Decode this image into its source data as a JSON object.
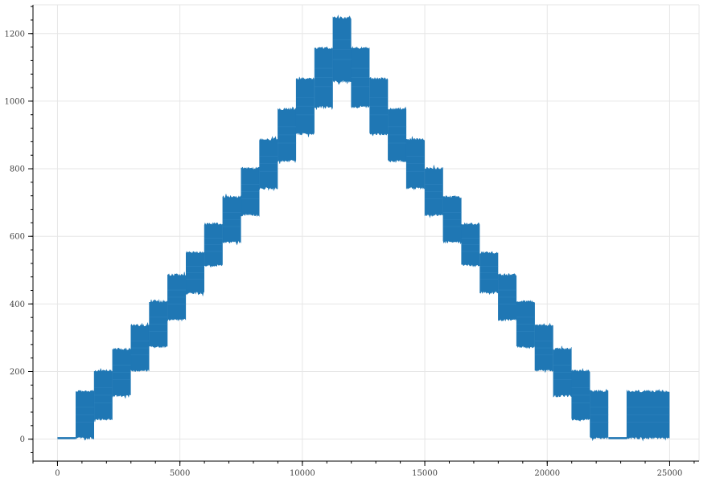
{
  "chart_data": {
    "type": "line",
    "title": "",
    "xlabel": "",
    "ylabel": "",
    "xlim": [
      -1000,
      26200
    ],
    "ylim": [
      -65,
      1285
    ],
    "grid": true,
    "legend": "none",
    "x_ticks": [
      0,
      5000,
      10000,
      15000,
      20000,
      25000
    ],
    "y_ticks": [
      0,
      200,
      400,
      600,
      800,
      1000,
      1200
    ],
    "x_tick_labels": [
      "0",
      "5000",
      "10000",
      "15000",
      "20000",
      "25000"
    ],
    "y_tick_labels": [
      "0",
      "200",
      "400",
      "600",
      "800",
      "1000",
      "1200"
    ],
    "series": [
      {
        "color": "#1f77b4",
        "noise_amplitude": 6,
        "blocks": [
          {
            "x": [
              0,
              750
            ],
            "y": [
              0,
              6
            ]
          },
          {
            "x": [
              750,
              1500
            ],
            "y": [
              0,
              145
            ]
          },
          {
            "x": [
              1500,
              2250
            ],
            "y": [
              55,
              205
            ]
          },
          {
            "x": [
              2250,
              3000
            ],
            "y": [
              125,
              270
            ]
          },
          {
            "x": [
              3000,
              3750
            ],
            "y": [
              200,
              340
            ]
          },
          {
            "x": [
              3750,
              4500
            ],
            "y": [
              270,
              410
            ]
          },
          {
            "x": [
              4500,
              5250
            ],
            "y": [
              350,
              490
            ]
          },
          {
            "x": [
              5250,
              6000
            ],
            "y": [
              430,
              555
            ]
          },
          {
            "x": [
              6000,
              6750
            ],
            "y": [
              510,
              640
            ]
          },
          {
            "x": [
              6750,
              7500
            ],
            "y": [
              580,
              720
            ]
          },
          {
            "x": [
              7500,
              8250
            ],
            "y": [
              660,
              805
            ]
          },
          {
            "x": [
              8250,
              9000
            ],
            "y": [
              740,
              890
            ]
          },
          {
            "x": [
              9000,
              9750
            ],
            "y": [
              820,
              980
            ]
          },
          {
            "x": [
              9750,
              10500
            ],
            "y": [
              900,
              1070
            ]
          },
          {
            "x": [
              10500,
              11250
            ],
            "y": [
              980,
              1160
            ]
          },
          {
            "x": [
              11250,
              12000
            ],
            "y": [
              1055,
              1250
            ]
          },
          {
            "x": [
              12000,
              12750
            ],
            "y": [
              980,
              1160
            ]
          },
          {
            "x": [
              12750,
              13500
            ],
            "y": [
              900,
              1070
            ]
          },
          {
            "x": [
              13500,
              14250
            ],
            "y": [
              820,
              980
            ]
          },
          {
            "x": [
              14250,
              15000
            ],
            "y": [
              740,
              890
            ]
          },
          {
            "x": [
              15000,
              15750
            ],
            "y": [
              660,
              805
            ]
          },
          {
            "x": [
              15750,
              16500
            ],
            "y": [
              580,
              720
            ]
          },
          {
            "x": [
              16500,
              17250
            ],
            "y": [
              510,
              640
            ]
          },
          {
            "x": [
              17250,
              18000
            ],
            "y": [
              430,
              555
            ]
          },
          {
            "x": [
              18000,
              18750
            ],
            "y": [
              350,
              490
            ]
          },
          {
            "x": [
              18750,
              19500
            ],
            "y": [
              270,
              410
            ]
          },
          {
            "x": [
              19500,
              20250
            ],
            "y": [
              200,
              340
            ]
          },
          {
            "x": [
              20250,
              21000
            ],
            "y": [
              125,
              270
            ]
          },
          {
            "x": [
              21000,
              21750
            ],
            "y": [
              55,
              205
            ]
          },
          {
            "x": [
              21750,
              22500
            ],
            "y": [
              0,
              145
            ]
          },
          {
            "x": [
              22500,
              23250
            ],
            "y": [
              0,
              6
            ]
          },
          {
            "x": [
              23250,
              25000
            ],
            "y": [
              0,
              145
            ]
          }
        ]
      }
    ]
  }
}
